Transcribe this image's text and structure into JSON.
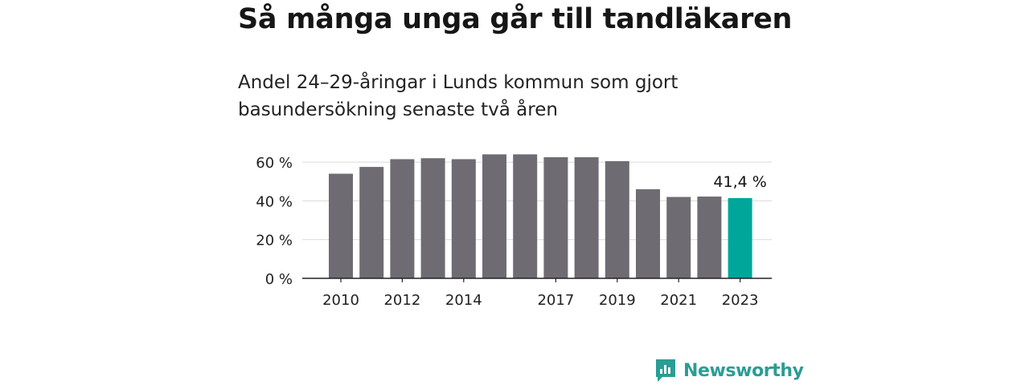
{
  "header": {
    "title": "Så många unga går till tandläkaren",
    "subtitle": "Andel 24–29-åringar i Lunds kommun som gjort basundersökning senaste två åren"
  },
  "brand": {
    "name": "Newsworthy",
    "icon": "newsworthy-logo-icon",
    "color": "#2a9d94"
  },
  "chart_data": {
    "type": "bar",
    "categories": [
      "2010",
      "2011",
      "2012",
      "2013",
      "2014",
      "2015",
      "2016",
      "2017",
      "2018",
      "2019",
      "2020",
      "2021",
      "2022",
      "2023"
    ],
    "values": [
      54,
      57.5,
      61.5,
      62,
      61.5,
      64,
      64,
      62.5,
      62.5,
      60.5,
      46,
      42,
      42.2,
      41.4
    ],
    "x_tick_labels": [
      "2010",
      "2012",
      "2014",
      "2017",
      "2019",
      "2021",
      "2023"
    ],
    "y_ticks": [
      0,
      20,
      40,
      60
    ],
    "y_tick_labels": [
      "0 %",
      "20 %",
      "40 %",
      "60 %"
    ],
    "ylim": [
      0,
      65
    ],
    "grid": true,
    "highlight": {
      "category": "2023",
      "label": "41,4 %"
    },
    "colors": {
      "bar": "#6e6c72",
      "highlight": "#00a69a",
      "grid": "#d9d9d9",
      "axis": "#222222"
    }
  }
}
